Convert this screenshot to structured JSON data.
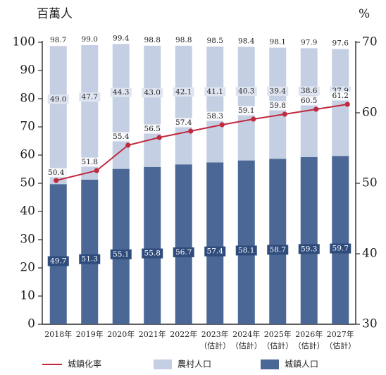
{
  "chart_data": {
    "type": "bar",
    "stacked": true,
    "categories": [
      [
        "2018年"
      ],
      [
        "2019年"
      ],
      [
        "2020年"
      ],
      [
        "2021年"
      ],
      [
        "2022年"
      ],
      [
        "2023年",
        "（估計）"
      ],
      [
        "2024年",
        "（估計）"
      ],
      [
        "2025年",
        "（估計）"
      ],
      [
        "2026年",
        "（估計）"
      ],
      [
        "2027年",
        "（估計）"
      ]
    ],
    "series": [
      {
        "name": "城鎮人口",
        "axis": "left",
        "color": "#4a6796",
        "values": [
          49.7,
          51.3,
          55.1,
          55.8,
          56.7,
          57.4,
          58.1,
          58.7,
          59.3,
          59.7
        ]
      },
      {
        "name": "農村人口",
        "axis": "left",
        "color": "#c5cfe3",
        "values": [
          49.0,
          47.7,
          44.3,
          43.0,
          42.1,
          41.1,
          40.3,
          39.4,
          38.6,
          37.9
        ]
      },
      {
        "name": "城鎮化率",
        "axis": "right",
        "type": "line",
        "color": "#c0293e",
        "values": [
          50.4,
          51.8,
          55.4,
          56.5,
          57.4,
          58.3,
          59.1,
          59.8,
          60.5,
          61.2
        ]
      }
    ],
    "totals": [
      98.7,
      99.0,
      99.4,
      98.8,
      98.8,
      98.5,
      98.4,
      98.1,
      97.9,
      97.6
    ],
    "left_axis": {
      "unit": "百萬人",
      "ylim": [
        0,
        100
      ],
      "ticks": [
        "0",
        "10",
        "20",
        "30",
        "40",
        "50",
        "60",
        "70",
        "80",
        "90",
        "100"
      ]
    },
    "right_axis": {
      "unit": "%",
      "ylim": [
        30,
        70
      ],
      "ticks": [
        "30",
        "40",
        "50",
        "60",
        "70"
      ]
    },
    "grid": false,
    "legend": {
      "placement": "bottom",
      "items": [
        {
          "label": "城鎮化率",
          "kind": "line",
          "color": "#c0293e"
        },
        {
          "label": "農村人口",
          "kind": "box",
          "color": "#c5cfe3"
        },
        {
          "label": "城鎮人口",
          "kind": "box",
          "color": "#4a6796"
        }
      ]
    }
  }
}
